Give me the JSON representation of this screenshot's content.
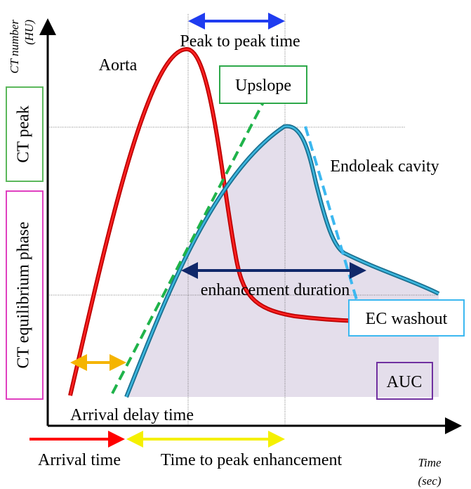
{
  "axis": {
    "y_label": [
      "CT number",
      "(HU)"
    ],
    "x_label": [
      "Time",
      "(sec)"
    ]
  },
  "labels": {
    "peak_to_peak": "Peak to peak time",
    "aorta": "Aorta",
    "upslope": "Upslope",
    "ct_peak": "CT peak",
    "endoleak": "Endoleak cavity",
    "equilibrium": "CT equilibrium phase",
    "duration": "enhancement duration",
    "washout": "EC washout",
    "auc": "AUC",
    "arrival_delay": "Arrival delay time",
    "arrival_time": "Arrival time",
    "time_to_peak": "Time to peak enhancement"
  }
}
